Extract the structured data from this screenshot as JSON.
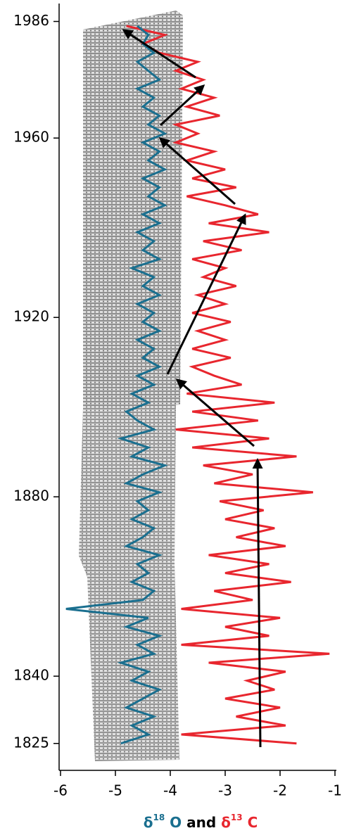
{
  "chart_data": {
    "type": "line",
    "orientation": "vertical",
    "xlim": [
      -6,
      -1
    ],
    "xticks": [
      -6,
      -5,
      -4,
      -3,
      -2,
      -1
    ],
    "ylim": [
      1819,
      1990
    ],
    "yticks": [
      1825,
      1840,
      1880,
      1920,
      1960,
      1986
    ],
    "xlabel_parts": [
      "δ",
      "18",
      " O",
      " and ",
      "δ",
      "13",
      " C"
    ],
    "y": [
      1825,
      1827,
      1829,
      1831,
      1833,
      1835,
      1837,
      1839,
      1841,
      1843,
      1845,
      1847,
      1849,
      1851,
      1853,
      1855,
      1857,
      1859,
      1861,
      1863,
      1865,
      1867,
      1869,
      1871,
      1873,
      1875,
      1877,
      1879,
      1881,
      1883,
      1885,
      1887,
      1889,
      1891,
      1893,
      1895,
      1897,
      1899,
      1901,
      1903,
      1905,
      1907,
      1909,
      1911,
      1913,
      1915,
      1917,
      1919,
      1921,
      1923,
      1925,
      1927,
      1929,
      1931,
      1933,
      1935,
      1937,
      1939,
      1941,
      1943,
      1945,
      1947,
      1949,
      1951,
      1953,
      1955,
      1957,
      1959,
      1961,
      1963,
      1965,
      1967,
      1969,
      1971,
      1973,
      1975,
      1977,
      1979,
      1981,
      1983,
      1985
    ],
    "series": [
      {
        "color": "#e8262e",
        "values": [
          -1.7,
          -3.8,
          -1.9,
          -2.8,
          -2.0,
          -3.0,
          -2.1,
          -2.6,
          -1.9,
          -3.3,
          -1.1,
          -3.8,
          -2.2,
          -3.0,
          -2.0,
          -3.8,
          -2.5,
          -3.2,
          -1.8,
          -3.0,
          -2.2,
          -3.3,
          -1.9,
          -2.8,
          -2.1,
          -3.0,
          -2.3,
          -3.1,
          -1.4,
          -3.2,
          -2.5,
          -3.4,
          -1.7,
          -3.6,
          -2.2,
          -3.9,
          -2.4,
          -3.6,
          -2.1,
          -3.7,
          -2.7,
          -3.2,
          -3.6,
          -2.9,
          -3.6,
          -3.0,
          -3.5,
          -2.9,
          -3.6,
          -3.0,
          -3.5,
          -2.8,
          -3.4,
          -3.0,
          -3.6,
          -2.7,
          -3.4,
          -2.2,
          -3.3,
          -2.4,
          -3.0,
          -3.7,
          -2.8,
          -3.6,
          -3.0,
          -3.7,
          -3.2,
          -3.9,
          -3.5,
          -3.9,
          -3.1,
          -3.7,
          -3.2,
          -3.8,
          -3.4,
          -3.9,
          -3.5,
          -4.2,
          -4.5,
          -4.1,
          -4.8
        ]
      },
      {
        "color": "#1a6f8f",
        "values": [
          -4.9,
          -4.4,
          -4.7,
          -4.3,
          -4.8,
          -4.5,
          -4.2,
          -4.7,
          -4.4,
          -4.9,
          -4.3,
          -4.6,
          -4.2,
          -4.8,
          -4.4,
          -5.9,
          -4.5,
          -4.3,
          -4.7,
          -4.4,
          -4.6,
          -4.2,
          -4.8,
          -4.5,
          -4.3,
          -4.7,
          -4.4,
          -4.6,
          -4.2,
          -4.8,
          -4.5,
          -4.1,
          -4.7,
          -4.4,
          -4.9,
          -4.3,
          -4.6,
          -4.8,
          -4.4,
          -4.7,
          -4.3,
          -4.6,
          -4.2,
          -4.5,
          -4.3,
          -4.6,
          -4.2,
          -4.5,
          -4.3,
          -4.6,
          -4.2,
          -4.5,
          -4.3,
          -4.7,
          -4.2,
          -4.5,
          -4.3,
          -4.6,
          -4.2,
          -4.5,
          -4.1,
          -4.4,
          -4.2,
          -4.5,
          -4.1,
          -4.4,
          -4.2,
          -4.5,
          -4.1,
          -4.4,
          -4.2,
          -4.5,
          -4.3,
          -4.6,
          -4.2,
          -4.4,
          -4.6,
          -4.3,
          -4.5,
          -4.4,
          -4.6
        ]
      }
    ]
  }
}
